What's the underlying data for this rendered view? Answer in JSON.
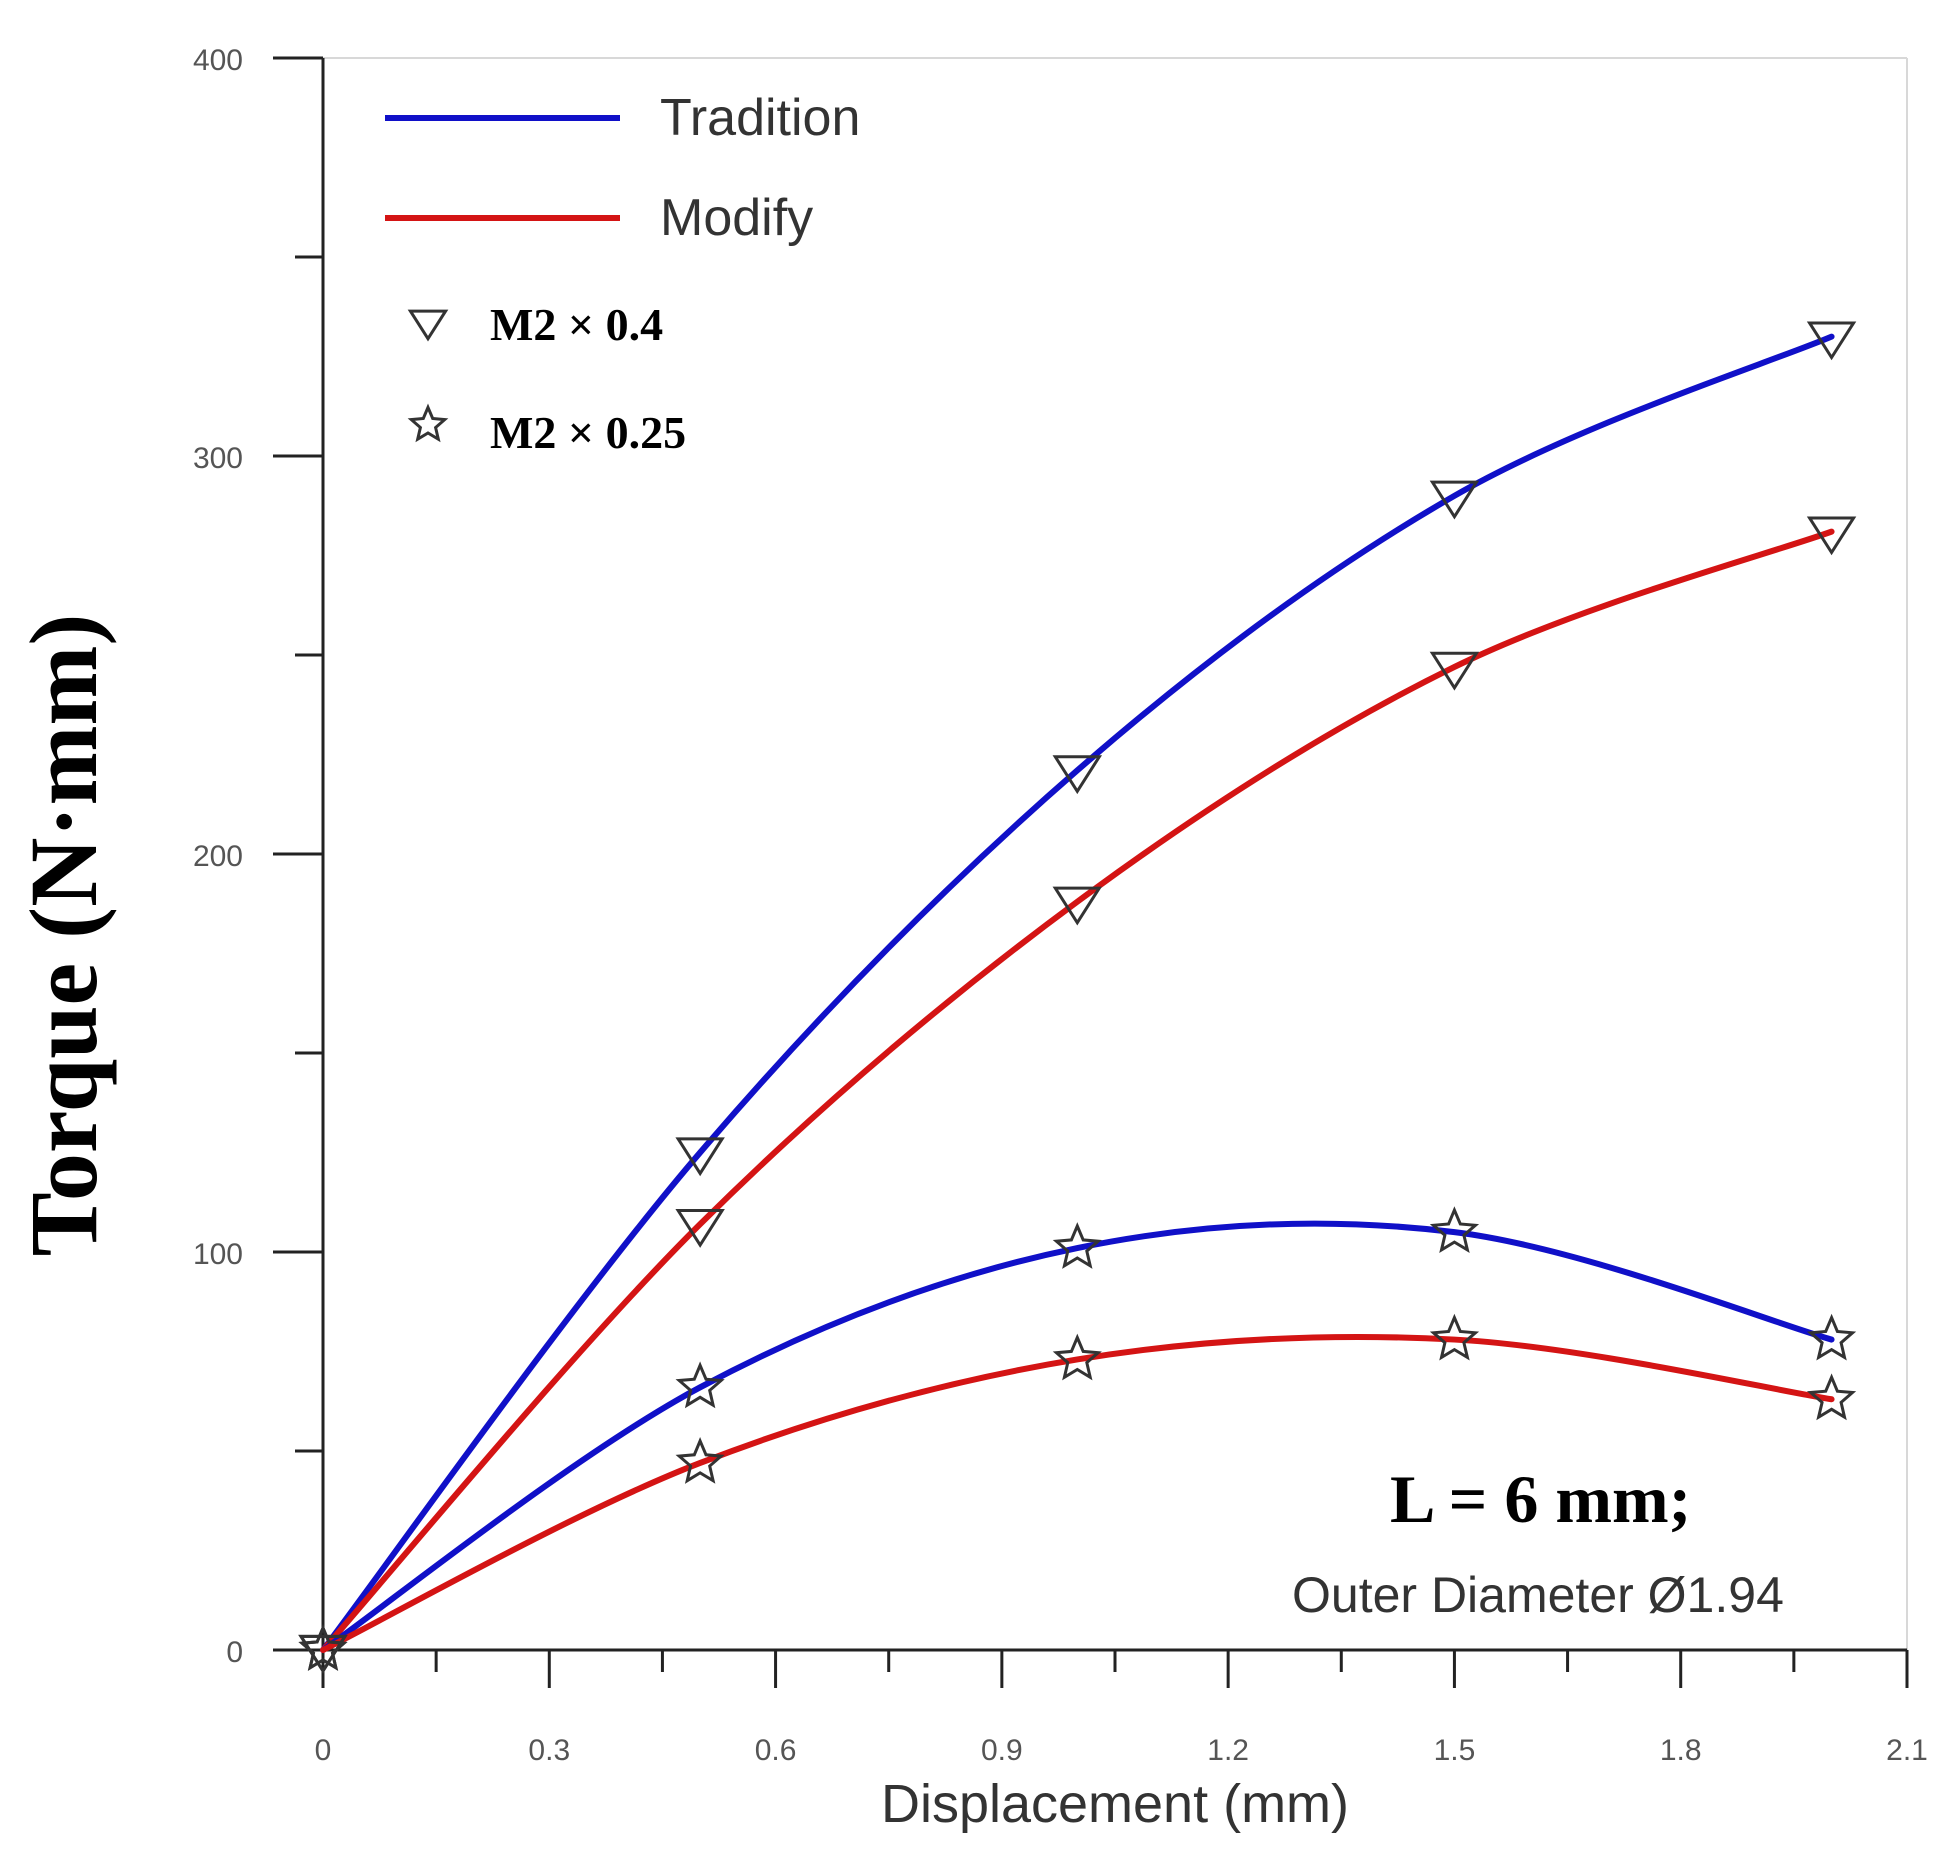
{
  "colors": {
    "tradition": "#1010c8",
    "modify": "#d41414",
    "axis": "#222222",
    "marker": "#333333"
  },
  "chart_data": {
    "type": "line",
    "title": "",
    "xlabel": "Displacement (mm)",
    "ylabel": "Torque (N·mm)",
    "xlim": [
      0,
      2.1
    ],
    "ylim": [
      0,
      400
    ],
    "x_ticks": [
      "0",
      "0.3",
      "0.6",
      "0.9",
      "1.2",
      "1.5",
      "1.8",
      "2.1"
    ],
    "x_tick_values": [
      0,
      0.3,
      0.6,
      0.9,
      1.2,
      1.5,
      1.8,
      2.1
    ],
    "y_ticks": [
      "0",
      "100",
      "200",
      "300",
      "400"
    ],
    "y_tick_values": [
      0,
      100,
      200,
      300,
      400
    ],
    "y_minor_ticks": [
      50,
      150,
      250,
      350
    ],
    "x_minor_ticks": [
      0.15,
      0.45,
      0.75,
      1.05,
      1.35,
      1.65,
      1.95
    ],
    "legend": {
      "lines": [
        {
          "label": "Tradition",
          "color_key": "tradition"
        },
        {
          "label": "Modify",
          "color_key": "modify"
        }
      ],
      "markers": [
        {
          "label": "M2 × 0.4",
          "marker": "triangle-down"
        },
        {
          "label": "M2 × 0.25",
          "marker": "star"
        }
      ]
    },
    "series": [
      {
        "name": "Tradition M2 × 0.4",
        "color_key": "tradition",
        "marker": "triangle-down",
        "x": [
          0,
          0.5,
          1.0,
          1.5,
          2.0
        ],
        "y": [
          0,
          125,
          221,
          290,
          330
        ]
      },
      {
        "name": "Modify M2 × 0.4",
        "color_key": "modify",
        "marker": "triangle-down",
        "x": [
          0,
          0.5,
          1.0,
          1.5,
          2.0
        ],
        "y": [
          0,
          107,
          188,
          247,
          281
        ]
      },
      {
        "name": "Tradition M2 × 0.25",
        "color_key": "tradition",
        "marker": "star",
        "x": [
          0,
          0.5,
          1.0,
          1.5,
          2.0
        ],
        "y": [
          0,
          66,
          101,
          105,
          78
        ]
      },
      {
        "name": "Modify M2 × 0.25",
        "color_key": "modify",
        "marker": "star",
        "x": [
          0,
          0.5,
          1.0,
          1.5,
          2.0
        ],
        "y": [
          0,
          47,
          73,
          78,
          63
        ]
      }
    ],
    "annotations": [
      {
        "text": "L = 6 mm;",
        "style": "bold"
      },
      {
        "text": "Outer Diameter Ø1.94",
        "style": "plain"
      }
    ]
  }
}
